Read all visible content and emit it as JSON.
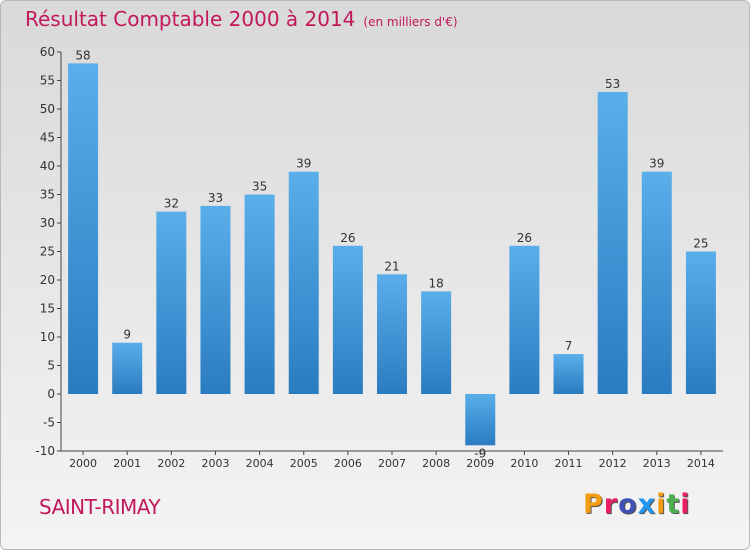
{
  "header": {
    "title": "Résultat Comptable 2000 à 2014",
    "subtitle": "(en milliers d'€)"
  },
  "place": "SAINT-RIMAY",
  "brand": {
    "text": "Proxiti",
    "colors": [
      "#f39c12",
      "#e91e63",
      "#3f51b5",
      "#2196f3",
      "#f39c12",
      "#4caf50",
      "#e91e63"
    ]
  },
  "chart_data": {
    "type": "bar",
    "categories": [
      "2000",
      "2001",
      "2002",
      "2003",
      "2004",
      "2005",
      "2006",
      "2007",
      "2008",
      "2009",
      "2010",
      "2011",
      "2012",
      "2013",
      "2014"
    ],
    "values": [
      58,
      9,
      32,
      33,
      35,
      39,
      26,
      21,
      18,
      -9,
      26,
      7,
      53,
      39,
      25
    ],
    "data_labels": [
      "58",
      "9",
      "32",
      "33",
      "35",
      "39",
      "26",
      "21",
      "18",
      "-9",
      "26",
      "7",
      "53",
      "39",
      "25"
    ],
    "title": "Résultat Comptable 2000 à 2014",
    "subtitle": "(en milliers d'€)",
    "ylim": [
      -10,
      60
    ],
    "yticks": [
      -10,
      -5,
      0,
      5,
      10,
      15,
      20,
      25,
      30,
      35,
      40,
      45,
      50,
      55,
      60
    ],
    "grid": false,
    "bar_color": "#3c93d6"
  }
}
